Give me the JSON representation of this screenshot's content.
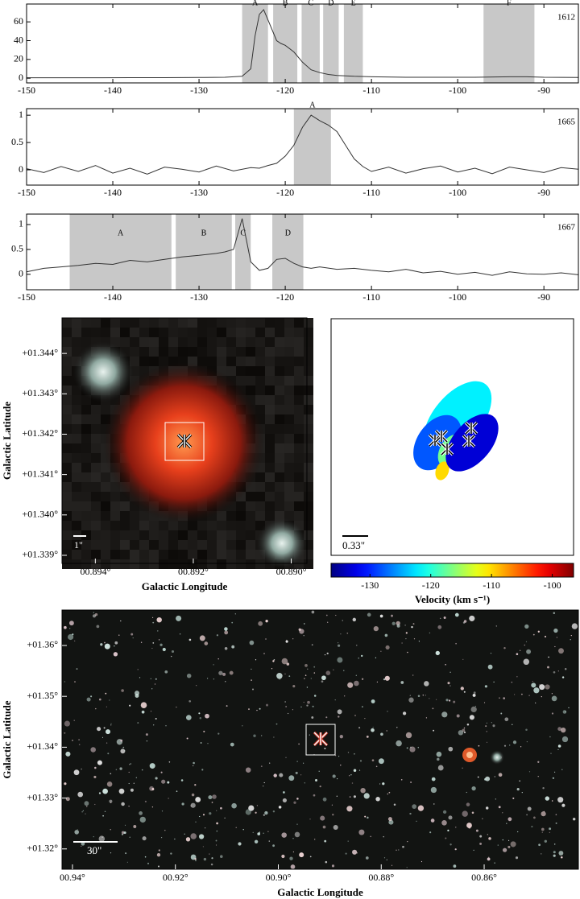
{
  "chart_data": [
    {
      "type": "line",
      "label": "1612",
      "color": "#333333",
      "band_color": "#c8c8c8",
      "x": [
        -150,
        -146,
        -142,
        -138,
        -134,
        -130,
        -127,
        -125,
        -124,
        -123.5,
        -123,
        -122.5,
        -122,
        -121,
        -120.5,
        -120,
        -119,
        -118,
        -117,
        -116,
        -115,
        -114,
        -112,
        -110,
        -106,
        -102,
        -98,
        -94,
        -92,
        -90,
        -86
      ],
      "values": [
        0.5,
        0.5,
        0.5,
        0.6,
        0.6,
        0.7,
        1,
        2,
        10,
        45,
        68,
        73,
        62,
        40,
        37,
        35,
        28,
        17,
        9,
        6,
        4,
        3,
        2,
        1.5,
        1,
        1,
        1,
        1.5,
        1.5,
        1,
        0.8
      ],
      "xlim": [
        -150,
        -86
      ],
      "ylim": [
        -5,
        79
      ],
      "xticks": [
        -150,
        -140,
        -130,
        -120,
        -110,
        -100,
        -90
      ],
      "yticks": [
        0,
        20,
        40,
        60
      ],
      "bands": [
        {
          "name": "A",
          "range": [
            -125,
            -122
          ]
        },
        {
          "name": "B",
          "range": [
            -121.4,
            -118.6
          ]
        },
        {
          "name": "C",
          "range": [
            -118.1,
            -116
          ]
        },
        {
          "name": "D",
          "range": [
            -115.6,
            -113.8
          ]
        },
        {
          "name": "E",
          "range": [
            -113.2,
            -111
          ]
        },
        {
          "name": "F",
          "range": [
            -97,
            -91.1
          ]
        }
      ]
    },
    {
      "type": "line",
      "label": "1665",
      "color": "#333333",
      "band_color": "#c8c8c8",
      "x": [
        -150,
        -148,
        -146,
        -144,
        -142,
        -140,
        -138,
        -136,
        -134,
        -132,
        -130,
        -128,
        -126,
        -124,
        -123,
        -122,
        -121,
        -120,
        -119,
        -118,
        -117,
        -116,
        -115,
        -114,
        -113,
        -112,
        -111,
        -110,
        -108,
        -106,
        -104,
        -102,
        -100,
        -98,
        -96,
        -94,
        -92,
        -90,
        -88,
        -86
      ],
      "values": [
        0.02,
        -0.05,
        0.06,
        -0.03,
        0.08,
        -0.06,
        0.03,
        -0.08,
        0.05,
        0.01,
        -0.04,
        0.07,
        -0.02,
        0.04,
        0.03,
        0.08,
        0.12,
        0.25,
        0.45,
        0.78,
        1.0,
        0.9,
        0.82,
        0.7,
        0.45,
        0.2,
        0.06,
        -0.03,
        0.05,
        -0.06,
        0.02,
        0.07,
        -0.04,
        0.03,
        -0.07,
        0.05,
        0.0,
        -0.05,
        0.04,
        0.01
      ],
      "xlim": [
        -150,
        -86
      ],
      "ylim": [
        -0.28,
        1.12
      ],
      "xticks": [
        -150,
        -140,
        -130,
        -120,
        -110,
        -100,
        -90
      ],
      "yticks": [
        0,
        0.5,
        1
      ],
      "bands": [
        {
          "name": "A",
          "range": [
            -119,
            -114.7
          ]
        }
      ]
    },
    {
      "type": "line",
      "label": "1667",
      "color": "#333333",
      "band_color": "#c8c8c8",
      "x": [
        -150,
        -148,
        -146,
        -144,
        -142,
        -140,
        -138,
        -136,
        -134,
        -132,
        -130,
        -128,
        -127,
        -126,
        -125,
        -124,
        -123,
        -122,
        -121,
        -120,
        -119,
        -118,
        -117,
        -116,
        -114,
        -112,
        -110,
        -108,
        -106,
        -104,
        -102,
        -100,
        -98,
        -96,
        -94,
        -92,
        -90,
        -88,
        -86
      ],
      "values": [
        0.05,
        0.12,
        0.15,
        0.18,
        0.22,
        0.2,
        0.28,
        0.25,
        0.3,
        0.35,
        0.38,
        0.42,
        0.45,
        0.5,
        1.12,
        0.25,
        0.08,
        0.12,
        0.3,
        0.32,
        0.22,
        0.15,
        0.12,
        0.15,
        0.1,
        0.12,
        0.08,
        0.05,
        0.1,
        0.03,
        0.06,
        0.0,
        0.04,
        -0.02,
        0.05,
        0.01,
        0.0,
        0.03,
        -0.01
      ],
      "xlim": [
        -150,
        -86
      ],
      "ylim": [
        -0.31,
        1.21
      ],
      "xticks": [
        -150,
        -140,
        -130,
        -120,
        -110,
        -100,
        -90
      ],
      "yticks": [
        0,
        0.5,
        1
      ],
      "bands": [
        {
          "name": "A",
          "range": [
            -145,
            -133.2
          ]
        },
        {
          "name": "B",
          "range": [
            -132.7,
            -126.2
          ]
        },
        {
          "name": "C",
          "range": [
            -125.8,
            -124
          ]
        },
        {
          "name": "D",
          "range": [
            -121.5,
            -117.9
          ]
        }
      ]
    },
    {
      "type": "image",
      "x_label": "Galactic Longitude",
      "y_label": "Galactic Latitude",
      "scale_bar": "1\"",
      "xlim": [
        0.89468,
        0.88968
      ],
      "ylim": [
        1.3388,
        1.34488
      ],
      "xticks": [
        {
          "value": 0.894,
          "label": "00.894°"
        },
        {
          "value": 0.892,
          "label": "00.892°"
        },
        {
          "value": 0.89,
          "label": "00.890°"
        }
      ],
      "yticks": [
        {
          "value": 1.339,
          "label": "+01.339°"
        },
        {
          "value": 1.34,
          "label": "+01.340°"
        },
        {
          "value": 1.341,
          "label": "+01.341°"
        },
        {
          "value": 1.342,
          "label": "+01.342°"
        },
        {
          "value": 1.343,
          "label": "+01.343°"
        },
        {
          "value": 1.344,
          "label": "+01.344°"
        }
      ]
    },
    {
      "type": "spots",
      "scale_bar": "0.33\"",
      "colorbar_label": "Velocity (km s⁻¹)",
      "colormap": "jet",
      "clim": [
        -136.4,
        -96.5
      ],
      "cticks": [
        -130,
        -120,
        -110,
        -100
      ],
      "values": [
        -99,
        -122,
        -128,
        -117,
        -110,
        -133
      ]
    },
    {
      "type": "starfield",
      "x_label": "Galactic Longitude",
      "y_label": "Galactic Latitude",
      "scale_bar": "30\"",
      "xlim": [
        0.94203,
        0.84169
      ],
      "ylim": [
        1.31601,
        1.36696
      ],
      "xticks": [
        {
          "value": 0.94,
          "label": "00.94°"
        },
        {
          "value": 0.92,
          "label": "00.92°"
        },
        {
          "value": 0.9,
          "label": "00.90°"
        },
        {
          "value": 0.88,
          "label": "00.88°"
        },
        {
          "value": 0.86,
          "label": "00.86°"
        }
      ],
      "yticks": [
        {
          "value": 1.32,
          "label": "+01.32°"
        },
        {
          "value": 1.33,
          "label": "+01.33°"
        },
        {
          "value": 1.34,
          "label": "+01.34°"
        },
        {
          "value": 1.35,
          "label": "+01.35°"
        },
        {
          "value": 1.36,
          "label": "+01.36°"
        }
      ]
    }
  ]
}
